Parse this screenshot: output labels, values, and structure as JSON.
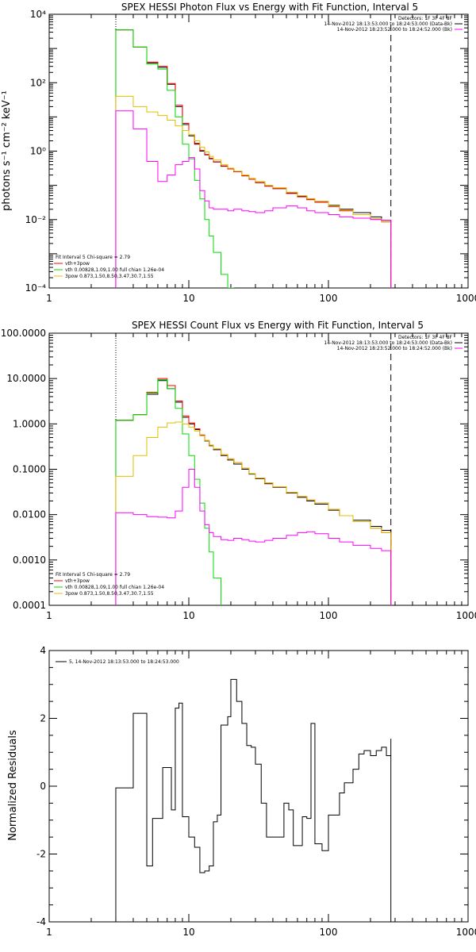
{
  "chart_data": [
    {
      "type": "line",
      "title": "SPEX HESSI Photon Flux vs Energy with Fit Function, Interval 5",
      "xlabel": "",
      "ylabel": "photons s⁻¹ cm⁻² keV⁻¹",
      "xscale": "log",
      "yscale": "log",
      "xlim": [
        1,
        1000
      ],
      "ylim": [
        0.0001,
        10000
      ],
      "x_tick_labels": [
        "1",
        "10",
        "100",
        "1000"
      ],
      "y_tick_labels": [
        "10⁻⁴",
        "10⁻²",
        "10⁰",
        "10²",
        "10⁴"
      ],
      "y_tick_values": [
        0.0001,
        0.01,
        1,
        100,
        10000
      ],
      "fit_range_lines": [
        3,
        280
      ],
      "legend_top_right": [
        "Detectors: 1F 3F 4F 8F",
        "14-Nov-2012 18:13:53.000 to 18:24:53.000 (Data-Bk)",
        "14-Nov-2012 18:23:52.000 to 18:24:52.000 (Bk)"
      ],
      "legend_bottom_left": [
        "Fit Interval 5   Chi-square = 2.79",
        "vth+3pow",
        "vth 0.00828,1.09,1.00  full chian 1.26e-04",
        "3pow 0.873,1.50,8.50,3.47,30.7,1.55"
      ],
      "series": [
        {
          "color": "#000000",
          "x": [
            3,
            4,
            5,
            6,
            7,
            8,
            9,
            10,
            11,
            12,
            13,
            14,
            15,
            17,
            19,
            21,
            24,
            27,
            30,
            35,
            40,
            50,
            60,
            70,
            80,
            100,
            120,
            150,
            200,
            240,
            280
          ],
          "y": [
            3500,
            1100,
            380,
            280,
            90,
            20,
            6,
            2.8,
            1.6,
            1.0,
            0.78,
            0.6,
            0.48,
            0.36,
            0.3,
            0.25,
            0.19,
            0.15,
            0.12,
            0.095,
            0.08,
            0.06,
            0.048,
            0.04,
            0.034,
            0.026,
            0.02,
            0.016,
            0.012,
            0.0095,
            0.008
          ]
        },
        {
          "color": "#ff0000",
          "x": [
            3,
            4,
            5,
            6,
            7,
            8,
            9,
            10,
            11,
            12,
            13,
            14,
            15,
            17,
            19,
            21,
            24,
            27,
            30,
            35,
            40,
            50,
            60,
            70,
            80,
            100,
            120,
            150,
            200,
            240,
            280
          ],
          "y": [
            3500,
            1100,
            400,
            300,
            95,
            22,
            6.5,
            3.0,
            1.7,
            1.05,
            0.8,
            0.62,
            0.49,
            0.37,
            0.3,
            0.25,
            0.19,
            0.15,
            0.12,
            0.095,
            0.08,
            0.058,
            0.046,
            0.038,
            0.032,
            0.024,
            0.018,
            0.014,
            0.0105,
            0.0085,
            0.0075
          ]
        },
        {
          "color": "#00dd00",
          "x": [
            3,
            4,
            5,
            6,
            7,
            8,
            9,
            10,
            11,
            12,
            13,
            14,
            15,
            17,
            19,
            21
          ],
          "y": [
            3500,
            1100,
            350,
            250,
            60,
            10,
            1.6,
            0.6,
            0.14,
            0.04,
            0.01,
            0.0033,
            0.0011,
            0.00025,
            0.0001,
            0.0001
          ]
        },
        {
          "color": "#e0c000",
          "x": [
            3,
            4,
            5,
            6,
            7,
            8,
            9,
            10,
            11,
            12,
            13,
            14,
            15,
            17,
            19,
            21,
            24,
            27,
            30,
            35,
            40,
            50,
            60,
            70,
            80,
            100,
            120,
            150,
            200,
            240,
            280
          ],
          "y": [
            40,
            20,
            14,
            11,
            8,
            5.5,
            4,
            3.0,
            2.0,
            1.3,
            0.95,
            0.7,
            0.55,
            0.4,
            0.32,
            0.26,
            0.2,
            0.16,
            0.13,
            0.1,
            0.085,
            0.063,
            0.05,
            0.041,
            0.034,
            0.025,
            0.019,
            0.014,
            0.0105,
            0.0085,
            0.0075
          ]
        },
        {
          "color": "#ff00ff",
          "x": [
            3,
            4,
            5,
            6,
            7,
            8,
            9,
            10,
            11,
            12,
            13,
            14,
            15,
            17,
            19,
            21,
            24,
            27,
            30,
            35,
            40,
            50,
            60,
            70,
            80,
            100,
            120,
            150,
            200,
            240,
            280
          ],
          "y": [
            15,
            4.5,
            0.5,
            0.13,
            0.2,
            0.4,
            0.5,
            0.65,
            0.3,
            0.07,
            0.035,
            0.022,
            0.02,
            0.02,
            0.018,
            0.02,
            0.018,
            0.017,
            0.016,
            0.018,
            0.022,
            0.025,
            0.022,
            0.018,
            0.016,
            0.014,
            0.012,
            0.011,
            0.01,
            0.0095,
            0.009
          ]
        }
      ]
    },
    {
      "type": "line",
      "title": "SPEX HESSI Count Flux vs Energy with Fit Function, Interval 5",
      "xlabel": "",
      "ylabel": "",
      "xscale": "log",
      "yscale": "log",
      "xlim": [
        1,
        1000
      ],
      "ylim": [
        0.0001,
        100
      ],
      "x_tick_labels": [
        "1",
        "10",
        "100",
        "1000"
      ],
      "y_tick_labels": [
        "0.0001",
        "0.0010",
        "0.0100",
        "0.1000",
        "1.0000",
        "10.0000",
        "100.0000"
      ],
      "y_tick_values": [
        0.0001,
        0.001,
        0.01,
        0.1,
        1,
        10,
        100
      ],
      "fit_range_lines": [
        3,
        280
      ],
      "legend_top_right": [
        "Detectors: 1F 3F 4F 8F",
        "14-Nov-2012 18:13:53.000 to 18:24:53.000 (Data-Bk)",
        "14-Nov-2012 18:23:52.000 to 18:24:52.000 (Bk)"
      ],
      "legend_bottom_left": [
        "Fit Interval 5   Chi-square = 2.79",
        "vth+3pow",
        "vth 0.00828,1.09,1.00  full chian 1.26e-04",
        "3pow 0.873,1.50,8.50,3.47,30.7,1.55"
      ],
      "series": [
        {
          "color": "#000000",
          "x": [
            3,
            4,
            5,
            6,
            7,
            8,
            9,
            10,
            11,
            12,
            13,
            14,
            15,
            17,
            19,
            21,
            24,
            27,
            30,
            35,
            40,
            50,
            60,
            70,
            80,
            100,
            120,
            150,
            200,
            240,
            280
          ],
          "y": [
            1.2,
            1.6,
            4.5,
            9,
            6,
            3,
            1.4,
            1.0,
            0.75,
            0.55,
            0.42,
            0.33,
            0.27,
            0.2,
            0.16,
            0.13,
            0.1,
            0.078,
            0.062,
            0.048,
            0.04,
            0.03,
            0.024,
            0.02,
            0.017,
            0.0125,
            0.0095,
            0.0075,
            0.0055,
            0.0045,
            0.0014
          ]
        },
        {
          "color": "#ff0000",
          "x": [
            3,
            4,
            5,
            6,
            7,
            8,
            9,
            10,
            11,
            12,
            13,
            14,
            15,
            17,
            19,
            21,
            24,
            27,
            30,
            35,
            40,
            50,
            60,
            70,
            80,
            100,
            120,
            150,
            200,
            240,
            280
          ],
          "y": [
            1.2,
            1.6,
            5,
            10,
            7,
            3.2,
            1.5,
            1.05,
            0.78,
            0.57,
            0.43,
            0.34,
            0.28,
            0.21,
            0.17,
            0.14,
            0.105,
            0.08,
            0.064,
            0.05,
            0.041,
            0.031,
            0.025,
            0.021,
            0.018,
            0.013,
            0.0095,
            0.007,
            0.005,
            0.004,
            0.0012
          ]
        },
        {
          "color": "#00dd00",
          "x": [
            3,
            4,
            5,
            6,
            7,
            8,
            9,
            10,
            11,
            12,
            13,
            14,
            15,
            17
          ],
          "y": [
            1.2,
            1.6,
            4.8,
            9.5,
            6,
            2.2,
            0.6,
            0.2,
            0.06,
            0.018,
            0.005,
            0.0015,
            0.0004,
            0.0001
          ]
        },
        {
          "color": "#e0c000",
          "x": [
            3,
            4,
            5,
            6,
            7,
            8,
            9,
            10,
            11,
            12,
            13,
            14,
            15,
            17,
            19,
            21,
            24,
            27,
            30,
            35,
            40,
            50,
            60,
            70,
            80,
            100,
            120,
            150,
            200,
            240,
            280
          ],
          "y": [
            0.07,
            0.2,
            0.5,
            0.85,
            1.05,
            1.1,
            1.0,
            0.85,
            0.7,
            0.55,
            0.43,
            0.34,
            0.28,
            0.21,
            0.17,
            0.14,
            0.105,
            0.08,
            0.064,
            0.05,
            0.041,
            0.031,
            0.025,
            0.021,
            0.018,
            0.013,
            0.0095,
            0.007,
            0.005,
            0.004,
            0.0012
          ]
        },
        {
          "color": "#ff00ff",
          "x": [
            3,
            4,
            5,
            6,
            7,
            8,
            9,
            10,
            11,
            12,
            13,
            14,
            15,
            17,
            19,
            21,
            24,
            27,
            30,
            35,
            40,
            50,
            60,
            70,
            80,
            100,
            120,
            150,
            200,
            240,
            280
          ],
          "y": [
            0.011,
            0.01,
            0.009,
            0.0088,
            0.0085,
            0.012,
            0.04,
            0.1,
            0.04,
            0.012,
            0.006,
            0.004,
            0.0033,
            0.0028,
            0.0027,
            0.003,
            0.0028,
            0.0026,
            0.0025,
            0.0027,
            0.003,
            0.0035,
            0.004,
            0.0042,
            0.0038,
            0.003,
            0.0025,
            0.0021,
            0.0018,
            0.0016,
            0.0009
          ]
        }
      ]
    },
    {
      "type": "line",
      "title": "",
      "xlabel": "",
      "ylabel": "Normalized Residuals",
      "xscale": "log",
      "yscale": "linear",
      "xlim": [
        1,
        1000
      ],
      "ylim": [
        -4,
        4
      ],
      "x_tick_labels": [
        "1",
        "10",
        "100",
        "1000"
      ],
      "y_tick_labels": [
        "-4",
        "-2",
        "0",
        "2",
        "4"
      ],
      "y_tick_values": [
        -4,
        -2,
        0,
        2,
        4
      ],
      "legend": [
        "5, 14-Nov-2012 18:13:53.000 to 18:24:53.000"
      ],
      "series": [
        {
          "color": "#000000",
          "x": [
            3,
            3.5,
            4,
            4.5,
            5,
            5.5,
            6,
            6.5,
            7,
            7.5,
            8,
            8.5,
            9,
            9.5,
            10,
            11,
            12,
            13,
            14,
            15,
            16,
            17,
            18,
            19,
            20,
            22,
            24,
            26,
            28,
            30,
            33,
            36,
            40,
            44,
            48,
            52,
            56,
            60,
            65,
            70,
            75,
            80,
            90,
            100,
            110,
            120,
            130,
            140,
            150,
            165,
            180,
            200,
            220,
            240,
            260,
            280
          ],
          "y": [
            -0.05,
            -0.05,
            2.15,
            2.15,
            -2.35,
            -0.95,
            -0.95,
            0.55,
            0.55,
            -0.7,
            2.3,
            2.45,
            -0.9,
            -0.9,
            -1.5,
            -1.8,
            -2.55,
            -2.5,
            -2.35,
            -1.05,
            -0.85,
            1.8,
            1.8,
            2.05,
            3.15,
            2.5,
            1.85,
            1.2,
            1.15,
            0.65,
            -0.5,
            -1.5,
            -1.5,
            -1.5,
            -0.5,
            -0.7,
            -1.75,
            -1.75,
            -0.9,
            -0.95,
            1.85,
            -1.7,
            -1.9,
            -0.85,
            -0.85,
            -0.2,
            0.1,
            0.1,
            0.5,
            0.95,
            1.05,
            0.9,
            1.05,
            1.15,
            0.9,
            1.4
          ]
        }
      ]
    }
  ]
}
